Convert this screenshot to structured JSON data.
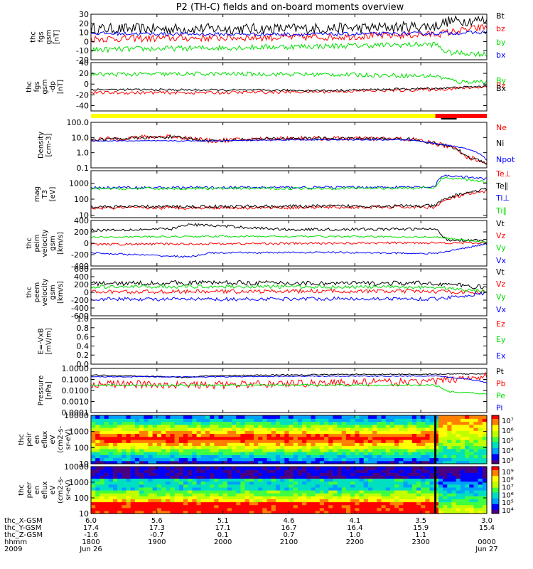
{
  "title": "P2 (TH-C) fields and on-board moments overview",
  "colors": {
    "black": "#000000",
    "red": "#ff0000",
    "green": "#00e000",
    "blue": "#0000ff",
    "yellow": "#ffff00"
  },
  "chart_data": [
    {
      "type": "line",
      "id": "bgsm",
      "ylabel": [
        "thc",
        "fgs",
        "gsm",
        "[nT]"
      ],
      "ylim": [
        -20,
        30
      ],
      "yticks": [
        "30",
        "20",
        "10",
        "0",
        "-10",
        "-20"
      ],
      "ytick_vals": [
        30,
        20,
        10,
        0,
        -10,
        -20
      ],
      "series": [
        {
          "name": "Bt",
          "color": "#000000",
          "x": [
            0,
            0.3,
            0.5,
            0.7,
            0.87,
            0.9,
            1.0
          ],
          "y": [
            14,
            14,
            14,
            15,
            17,
            22,
            24
          ],
          "noise": 6
        },
        {
          "name": "bz",
          "color": "#ff0000",
          "x": [
            0,
            0.3,
            0.6,
            0.87,
            1.0
          ],
          "y": [
            3,
            4,
            5,
            8,
            16
          ],
          "noise": 4
        },
        {
          "name": "by",
          "color": "#00e000",
          "x": [
            0,
            0.3,
            0.6,
            0.87,
            0.9,
            1.0
          ],
          "y": [
            -9,
            -7,
            -5,
            -3,
            -12,
            -14
          ],
          "noise": 3
        },
        {
          "name": "bx",
          "color": "#0000ff",
          "x": [
            0,
            0.3,
            0.6,
            0.87,
            1.0
          ],
          "y": [
            9,
            8,
            8,
            9,
            10
          ],
          "noise": 2
        }
      ]
    },
    {
      "type": "line",
      "id": "efgsm",
      "ylabel": [
        "thc",
        "fgs",
        "gsm",
        "-dp",
        "[nT]"
      ],
      "ylim": [
        -50,
        40
      ],
      "yticks": [
        "40",
        "20",
        "0",
        "-20",
        "-40"
      ],
      "ytick_vals": [
        40,
        20,
        0,
        -20,
        -40
      ],
      "series": [
        {
          "name": "By",
          "color": "#00e000",
          "x": [
            0,
            0.3,
            0.6,
            0.87,
            0.93,
            1.0
          ],
          "y": [
            18,
            19,
            18,
            15,
            4,
            5
          ],
          "noise": 4
        },
        {
          "name": "Bz",
          "color": "#ff0000",
          "x": [
            0,
            0.3,
            0.6,
            0.87,
            1.0
          ],
          "y": [
            -16,
            -16,
            -14,
            -10,
            -5
          ],
          "noise": 3
        },
        {
          "name": "Bx",
          "color": "#000000",
          "x": [
            0,
            0.3,
            0.6,
            0.87,
            1.0
          ],
          "y": [
            -10,
            -11,
            -12,
            -8,
            -4
          ],
          "noise": 2
        }
      ]
    },
    {
      "type": "line",
      "id": "density",
      "ylabel": [
        "Density",
        "[cm-3]"
      ],
      "ylim": [
        0.1,
        100
      ],
      "log": true,
      "yticks": [
        "100.0",
        "10.0",
        "1.0",
        "0.1"
      ],
      "ytick_vals": [
        100,
        10,
        1,
        0.1
      ],
      "series": [
        {
          "name": "Ne",
          "color": "#ff0000",
          "x": [
            0,
            0.2,
            0.3,
            0.5,
            0.8,
            0.87,
            0.95,
            1.0
          ],
          "y": [
            7,
            12,
            6,
            9,
            8,
            4,
            0.5,
            0.2
          ],
          "noise": 0.15
        },
        {
          "name": "Ni",
          "color": "#000000",
          "x": [
            0,
            0.2,
            0.3,
            0.5,
            0.8,
            0.87,
            0.95,
            1.0
          ],
          "y": [
            7,
            11,
            6,
            9,
            8,
            4,
            0.5,
            0.2
          ],
          "noise": 0.1
        },
        {
          "name": "Npot",
          "color": "#0000ff",
          "x": [
            0,
            0.3,
            0.5,
            0.8,
            0.87,
            1.0
          ],
          "y": [
            6,
            6,
            7,
            7,
            4,
            0.3
          ],
          "noise": 0.03
        }
      ]
    },
    {
      "type": "line",
      "id": "temp",
      "ylabel": [
        "mag",
        "T3",
        "[eV]"
      ],
      "ylim": [
        7,
        6000
      ],
      "log": true,
      "yticks": [
        "1000",
        "100",
        "10"
      ],
      "ytick_vals": [
        1000,
        100,
        10
      ],
      "series": [
        {
          "name": "Te⊥",
          "color": "#ff0000",
          "x": [
            0,
            0.5,
            0.87,
            0.9,
            1.0
          ],
          "y": [
            28,
            30,
            32,
            90,
            300
          ],
          "noise": 0.1
        },
        {
          "name": "Te∥",
          "color": "#000000",
          "x": [
            0,
            0.5,
            0.87,
            0.9,
            1.0
          ],
          "y": [
            33,
            36,
            38,
            110,
            400
          ],
          "noise": 0.1
        },
        {
          "name": "Ti⊥",
          "color": "#0000ff",
          "x": [
            0,
            0.5,
            0.87,
            0.89,
            1.0
          ],
          "y": [
            520,
            540,
            560,
            3000,
            1800
          ],
          "noise": 0.08
        },
        {
          "name": "Ti∥",
          "color": "#00e000",
          "x": [
            0,
            0.5,
            0.87,
            0.89,
            1.0
          ],
          "y": [
            450,
            470,
            500,
            2200,
            1200
          ],
          "noise": 0.08
        }
      ]
    },
    {
      "type": "line",
      "id": "peim",
      "ylabel": [
        "thc",
        "peim",
        "velocity",
        "gsm",
        "[km/s]"
      ],
      "ylim": [
        -400,
        400
      ],
      "yticks": [
        "400",
        "200",
        "0",
        "-200",
        "-400"
      ],
      "ytick_vals": [
        400,
        200,
        0,
        -200,
        -400
      ],
      "series": [
        {
          "name": "Vt",
          "color": "#000000",
          "x": [
            0,
            0.2,
            0.25,
            0.5,
            0.87,
            0.9,
            1.0
          ],
          "y": [
            230,
            250,
            330,
            240,
            250,
            60,
            50
          ],
          "noise": 25
        },
        {
          "name": "Vz",
          "color": "#ff0000",
          "x": [
            0,
            0.3,
            0.6,
            0.87,
            1.0
          ],
          "y": [
            -20,
            -10,
            0,
            10,
            0
          ],
          "noise": 20
        },
        {
          "name": "Vy",
          "color": "#00e000",
          "x": [
            0,
            0.3,
            0.6,
            0.87,
            1.0
          ],
          "y": [
            110,
            120,
            120,
            110,
            20
          ],
          "noise": 15
        },
        {
          "name": "Vx",
          "color": "#0000ff",
          "x": [
            0,
            0.25,
            0.3,
            0.6,
            0.87,
            1.0
          ],
          "y": [
            -170,
            -240,
            -170,
            -160,
            -180,
            -10
          ],
          "noise": 15
        }
      ]
    },
    {
      "type": "line",
      "id": "peem",
      "ylabel": [
        "thc",
        "peem",
        "velocity",
        "gsm",
        "[km/s]"
      ],
      "ylim": [
        -600,
        600
      ],
      "yticks": [
        "600",
        "400",
        "200",
        "0",
        "-200",
        "-400",
        "-600"
      ],
      "ytick_vals": [
        600,
        400,
        200,
        0,
        -200,
        -400,
        -600
      ],
      "series": [
        {
          "name": "Vt",
          "color": "#000000",
          "x": [
            0,
            0.3,
            0.6,
            0.87,
            1.0
          ],
          "y": [
            220,
            250,
            230,
            230,
            120
          ],
          "noise": 60
        },
        {
          "name": "Vz",
          "color": "#ff0000",
          "x": [
            0,
            0.3,
            0.6,
            0.87,
            1.0
          ],
          "y": [
            10,
            20,
            30,
            20,
            0
          ],
          "noise": 50
        },
        {
          "name": "Vy",
          "color": "#00e000",
          "x": [
            0,
            0.3,
            0.6,
            0.87,
            1.0
          ],
          "y": [
            140,
            150,
            140,
            130,
            20
          ],
          "noise": 45
        },
        {
          "name": "Vx",
          "color": "#0000ff",
          "x": [
            0,
            0.3,
            0.6,
            0.87,
            1.0
          ],
          "y": [
            -170,
            -180,
            -160,
            -170,
            -20
          ],
          "noise": 45
        }
      ]
    },
    {
      "type": "line",
      "id": "efield",
      "ylabel": [
        "E=-VxB",
        "[mV/m]"
      ],
      "ylim": [
        0,
        1
      ],
      "yticks": [
        "1.0",
        "0.8",
        "0.6",
        "0.4",
        "0.2",
        "0.0"
      ],
      "ytick_vals": [
        1,
        0.8,
        0.6,
        0.4,
        0.2,
        0
      ],
      "series": [
        {
          "name": "Ez",
          "color": "#ff0000",
          "x": [],
          "y": []
        },
        {
          "name": "Ey",
          "color": "#00e000",
          "x": [],
          "y": []
        },
        {
          "name": "Ex",
          "color": "#0000ff",
          "x": [],
          "y": []
        }
      ]
    },
    {
      "type": "line",
      "id": "pressure",
      "ylabel": [
        "Pressure",
        "[nPa]"
      ],
      "ylim": [
        0.0001,
        1
      ],
      "log": true,
      "yticks": [
        "1.0000",
        "0.1000",
        "0.0100",
        "0.0010",
        "0.0001"
      ],
      "ytick_vals": [
        1,
        0.1,
        0.01,
        0.001,
        0.0001
      ],
      "series": [
        {
          "name": "Pt",
          "color": "#000000",
          "x": [
            0,
            0.25,
            0.3,
            0.6,
            0.87,
            1.0
          ],
          "y": [
            0.25,
            0.15,
            0.22,
            0.28,
            0.3,
            0.32
          ],
          "noise": 0.05
        },
        {
          "name": "Pb",
          "color": "#ff0000",
          "x": [
            0,
            0.3,
            0.6,
            0.87,
            1.0
          ],
          "y": [
            0.04,
            0.03,
            0.05,
            0.06,
            0.2
          ],
          "noise": 0.35
        },
        {
          "name": "Pe",
          "color": "#00e000",
          "x": [
            0,
            0.5,
            0.87,
            0.9,
            1.0
          ],
          "y": [
            0.03,
            0.03,
            0.03,
            0.008,
            0.005
          ],
          "noise": 0.08
        },
        {
          "name": "Pi",
          "color": "#0000ff",
          "x": [
            0,
            0.3,
            0.6,
            0.87,
            1.0
          ],
          "y": [
            0.18,
            0.17,
            0.2,
            0.2,
            0.05
          ],
          "noise": 0.04
        }
      ]
    },
    {
      "type": "heatmap",
      "id": "peir",
      "ylabel": [
        "thc",
        "peir",
        "en",
        "eflux",
        "eV",
        "(cm2-s-",
        "sr-eV)"
      ],
      "ylim": [
        10,
        10000
      ],
      "log": true,
      "yticks": [
        "10000",
        "1000",
        "100",
        "10"
      ],
      "ytick_vals": [
        10000,
        1000,
        100,
        10
      ],
      "colorbar": {
        "ticks": [
          "10⁷",
          "10⁶",
          "10⁵",
          "10⁴",
          "10³"
        ]
      }
    },
    {
      "type": "heatmap",
      "id": "peer",
      "ylabel": [
        "thc",
        "peer",
        "en",
        "eflux",
        "eV",
        "(cm2-s-",
        "sr-eV)"
      ],
      "ylim": [
        10,
        10000
      ],
      "log": true,
      "yticks": [
        "10000",
        "1000",
        "100",
        "10"
      ],
      "ytick_vals": [
        10000,
        1000,
        100,
        10
      ],
      "colorbar": {
        "ticks": [
          "10⁹",
          "10⁸",
          "10⁷",
          "10⁶",
          "10⁵",
          "10⁴"
        ]
      }
    }
  ],
  "legends": {
    "bgsm": [
      "Bt",
      "bz",
      "by",
      "bx"
    ],
    "efgsm": [
      "By",
      "Bz",
      "Bx"
    ],
    "density": [
      "Ne",
      "Ni",
      "Npot"
    ],
    "temp": [
      "Te⊥",
      "Te∥",
      "Ti⊥",
      "Ti∥"
    ],
    "peim": [
      "Vt",
      "Vz",
      "Vy",
      "Vx"
    ],
    "peem": [
      "Vt",
      "Vz",
      "Vy",
      "Vx"
    ],
    "efield": [
      "Ez",
      "Ey",
      "Ex"
    ],
    "pressure": [
      "Pt",
      "Pb",
      "Pe",
      "Pi"
    ]
  },
  "footer": {
    "row_labels": [
      "thc_X-GSM",
      "thc_Y-GSM",
      "thc_Z-GSM",
      "hhmm",
      "2009"
    ],
    "columns": [
      [
        "6.0",
        "17.4",
        "-1.6",
        "1800",
        "Jun 26"
      ],
      [
        "5.6",
        "17.3",
        "-0.7",
        "1900",
        ""
      ],
      [
        "5.1",
        "17.1",
        "0.1",
        "2000",
        ""
      ],
      [
        "4.6",
        "16.7",
        "0.7",
        "2100",
        ""
      ],
      [
        "4.1",
        "16.4",
        "1.0",
        "2200",
        ""
      ],
      [
        "3.5",
        "15.9",
        "1.1",
        "2300",
        ""
      ],
      [
        "3.0",
        "15.4",
        "",
        "0000",
        "Jun 27"
      ]
    ]
  },
  "mode_bar": {
    "yellow_until": 0.87
  }
}
